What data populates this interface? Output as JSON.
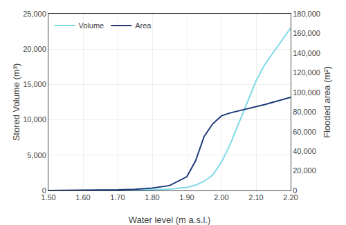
{
  "chart_data": {
    "type": "line",
    "xlabel": "Water level (m a.s.l.)",
    "ylabel": "Stored Volume (m³)",
    "y2label": "Flooded area (m²)",
    "x": [
      1.5,
      1.55,
      1.6,
      1.65,
      1.7,
      1.75,
      1.8,
      1.85,
      1.9,
      1.925,
      1.95,
      1.975,
      2.0,
      2.025,
      2.05,
      2.075,
      2.1,
      2.125,
      2.15,
      2.175,
      2.2
    ],
    "series": [
      {
        "name": "Volume",
        "color": "#7fd8e8",
        "axis": "y",
        "values": [
          0,
          2,
          5,
          10,
          20,
          45,
          100,
          200,
          450,
          750,
          1300,
          2200,
          4000,
          6500,
          9500,
          12500,
          15500,
          17800,
          19500,
          21200,
          23000
        ]
      },
      {
        "name": "Area",
        "color": "#1f3a7a",
        "axis": "y2",
        "values": [
          0,
          100,
          200,
          400,
          700,
          1300,
          2500,
          5000,
          14000,
          30000,
          55000,
          68000,
          76000,
          79000,
          81000,
          83000,
          85000,
          87500,
          90000,
          92500,
          95000
        ]
      }
    ],
    "xlim": [
      1.5,
      2.2
    ],
    "xticks": [
      {
        "value": 1.5,
        "label": "1.50"
      },
      {
        "value": 1.6,
        "label": "1.60"
      },
      {
        "value": 1.7,
        "label": "1.70"
      },
      {
        "value": 1.8,
        "label": "1.80"
      },
      {
        "value": 1.9,
        "label": "1.90"
      },
      {
        "value": 2.0,
        "label": "2.00"
      },
      {
        "value": 2.1,
        "label": "2.10"
      },
      {
        "value": 2.2,
        "label": "2.20"
      }
    ],
    "ylim": [
      0,
      25000
    ],
    "yticks": [
      0,
      {
        "value": 5000,
        "label": "5,000"
      },
      {
        "value": 10000,
        "label": "10,000"
      },
      {
        "value": 15000,
        "label": "15,000"
      },
      {
        "value": 20000,
        "label": "20,000"
      },
      {
        "value": 25000,
        "label": "25,000"
      }
    ],
    "y2lim": [
      0,
      180000
    ],
    "y2ticks": [
      0,
      {
        "value": 20000,
        "label": "20,000"
      },
      {
        "value": 40000,
        "label": "40,000"
      },
      {
        "value": 60000,
        "label": "60,000"
      },
      {
        "value": 80000,
        "label": "80,000"
      },
      {
        "value": 100000,
        "label": "100,000"
      },
      {
        "value": 120000,
        "label": "120,000"
      },
      {
        "value": 140000,
        "label": "140,000"
      },
      {
        "value": 160000,
        "label": "160,000"
      },
      {
        "value": 180000,
        "label": "180,000"
      }
    ],
    "grid": true,
    "legend": "upper left"
  }
}
